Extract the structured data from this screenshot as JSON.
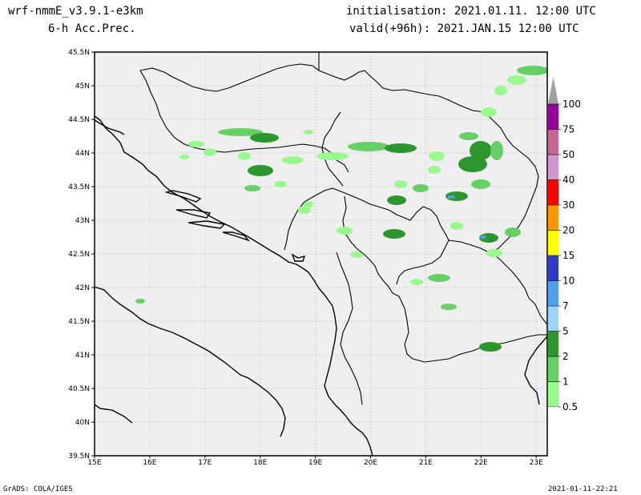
{
  "header": {
    "model": "wrf-nmmE_v3.9.1-e3km",
    "field": "6-h Acc.Prec.",
    "init": "initialisation: 2021.01.11. 12:00 UTC",
    "valid": "valid(+96h): 2021.JAN.15 12:00 UTC"
  },
  "map": {
    "lon_range": [
      15,
      23.2
    ],
    "lat_range": [
      39.5,
      45.5
    ],
    "lat_labels": [
      "45.5N",
      "45N",
      "44.5N",
      "44N",
      "43.5N",
      "43N",
      "42.5N",
      "42N",
      "41.5N",
      "41N",
      "40.5N",
      "40N",
      "39.5N"
    ],
    "lon_labels": [
      "15E",
      "16E",
      "17E",
      "18E",
      "19E",
      "20E",
      "21E",
      "22E",
      "23E"
    ],
    "land_color": "#efefef",
    "grid": true
  },
  "colorbar": {
    "labels": [
      "0.5",
      "1",
      "2",
      "5",
      "7",
      "10",
      "15",
      "20",
      "30",
      "40",
      "50",
      "75",
      "100"
    ],
    "colors": [
      "#98fa8c",
      "#66d066",
      "#2e962e",
      "#a0d2fa",
      "#50a0f0",
      "#2d3cc8",
      "#ffff00",
      "#ff9600",
      "#ff0000",
      "#d296d2",
      "#c86496",
      "#96009b",
      "#a0a0a0"
    ]
  },
  "footer": {
    "left": "GrADS: COLA/IGES",
    "right": "2021-01-11-22:21"
  }
}
